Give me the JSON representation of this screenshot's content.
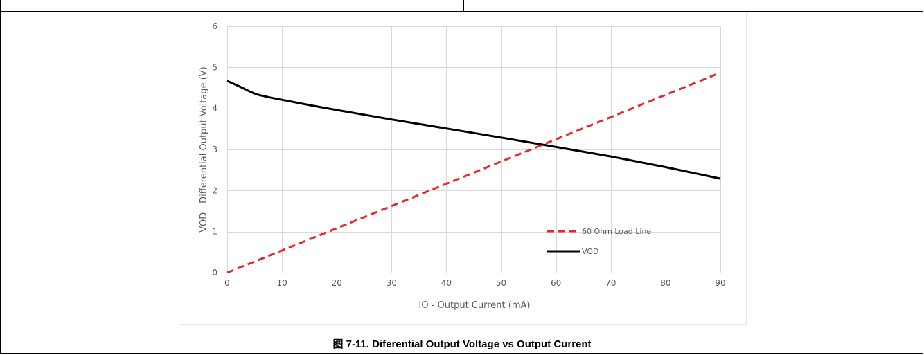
{
  "caption": "图 7-11. Diferential Output Voltage vs Output Current",
  "chart_data": {
    "type": "line",
    "title": "",
    "xlabel": "IO - Output Current (mA)",
    "ylabel": "VOD - Differential Output Voltage (V)",
    "xlim": [
      0,
      90
    ],
    "ylim": [
      0,
      6
    ],
    "xticks": [
      0,
      10,
      20,
      30,
      40,
      50,
      60,
      70,
      80,
      90
    ],
    "yticks": [
      0,
      1,
      2,
      3,
      4,
      5,
      6
    ],
    "grid": true,
    "legend_position": "bottom-right",
    "series": [
      {
        "name": "60 Ohm Load Line",
        "color": "#e8262b",
        "dash": "dashed",
        "x": [
          0,
          90
        ],
        "y": [
          0,
          4.87
        ]
      },
      {
        "name": "VOD",
        "color": "#000000",
        "dash": "solid",
        "x": [
          0,
          2,
          4,
          5,
          6,
          8,
          10,
          15,
          20,
          30,
          40,
          50,
          60,
          70,
          80,
          90
        ],
        "y": [
          4.67,
          4.55,
          4.42,
          4.36,
          4.32,
          4.26,
          4.21,
          4.08,
          3.96,
          3.73,
          3.51,
          3.29,
          3.06,
          2.83,
          2.57,
          2.29
        ]
      }
    ]
  }
}
